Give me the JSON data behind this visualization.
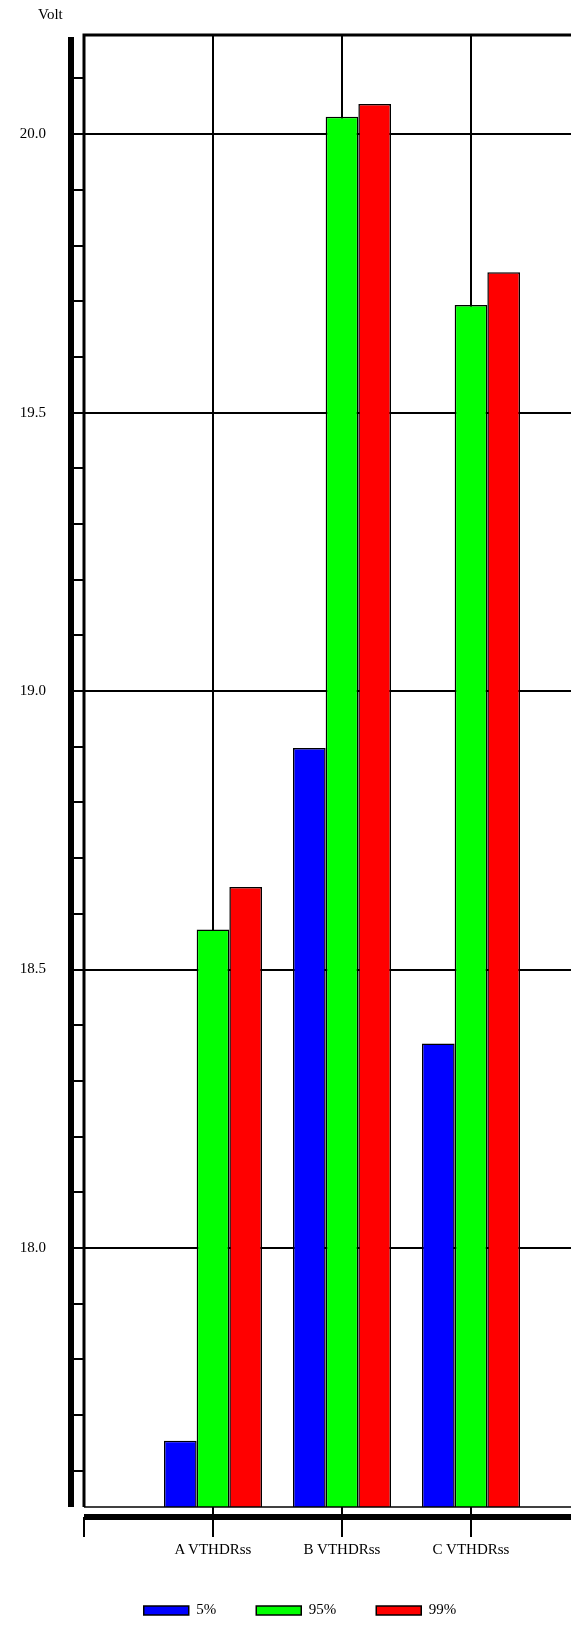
{
  "chart_data": {
    "type": "bar",
    "ylabel": "Volt",
    "categories": [
      "A VTHDRss",
      "B VTHDRss",
      "C VTHDRss"
    ],
    "series": [
      {
        "name": "5%",
        "color": "#0000ff",
        "values": [
          17.654,
          18.898,
          18.367
        ]
      },
      {
        "name": "95%",
        "color": "#00ff00",
        "values": [
          18.572,
          20.031,
          19.693
        ]
      },
      {
        "name": "99%",
        "color": "#ff0000",
        "values": [
          18.648,
          20.054,
          19.752
        ]
      }
    ],
    "ylim": [
      17.535,
      20.178
    ],
    "yticks": [
      {
        "value": 17.6,
        "label": null
      },
      {
        "value": 17.7,
        "label": null
      },
      {
        "value": 17.8,
        "label": null
      },
      {
        "value": 17.9,
        "label": null
      },
      {
        "value": 18,
        "label": "18.0"
      },
      {
        "value": 18.1,
        "label": null
      },
      {
        "value": 18.2,
        "label": null
      },
      {
        "value": 18.3,
        "label": null
      },
      {
        "value": 18.4,
        "label": null
      },
      {
        "value": 18.5,
        "label": "18.5"
      },
      {
        "value": 18.6,
        "label": null
      },
      {
        "value": 18.7,
        "label": null
      },
      {
        "value": 18.8,
        "label": null
      },
      {
        "value": 18.9,
        "label": null
      },
      {
        "value": 19,
        "label": "19.0"
      },
      {
        "value": 19.1,
        "label": null
      },
      {
        "value": 19.2,
        "label": null
      },
      {
        "value": 19.3,
        "label": null
      },
      {
        "value": 19.4,
        "label": null
      },
      {
        "value": 19.5,
        "label": "19.5"
      },
      {
        "value": 19.6,
        "label": null
      },
      {
        "value": 19.7,
        "label": null
      },
      {
        "value": 19.8,
        "label": null
      },
      {
        "value": 19.9,
        "label": null
      },
      {
        "value": 20,
        "label": "20.0"
      },
      {
        "value": 20.1,
        "label": null
      }
    ],
    "grid": true,
    "legend": "bottom"
  }
}
